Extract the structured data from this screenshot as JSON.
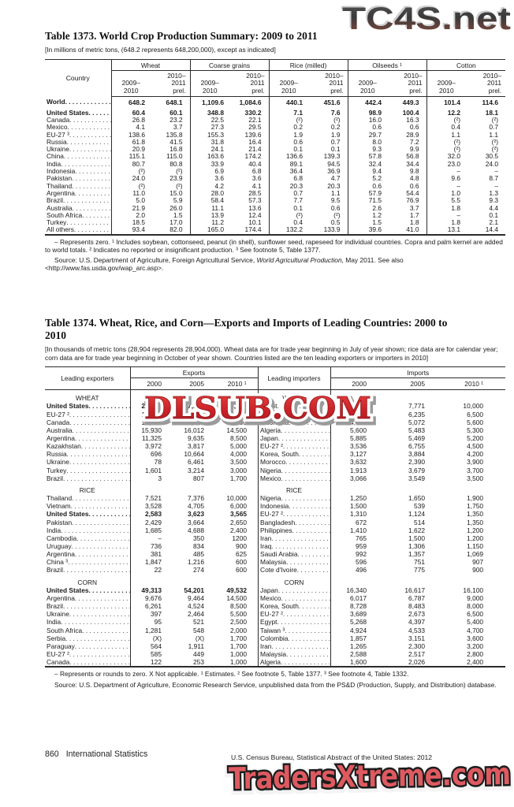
{
  "watermarks": {
    "top": "TC4S.net",
    "middle": "DLSUB.COM",
    "bottom": "TradersXtreme.com"
  },
  "footer": {
    "page_number": "860",
    "section": "International Statistics",
    "credit": "U.S. Census Bureau, Statistical Abstract of the United States: 2012"
  },
  "table1373": {
    "title": "Table 1373. World Crop Production Summary: 2009 to 2011",
    "note": "[In millions of metric tons, (648.2 represents 648,200,000), except as indicated]",
    "country_header": "Country",
    "groups": [
      "Wheat",
      "Coarse grains",
      "Rice (milled)",
      "Oilseeds ¹",
      "Cotton"
    ],
    "year_col1": "2009–\n2010",
    "year_col2": "2010–\n2011\nprel.",
    "rows": [
      {
        "label": "World",
        "bold": true,
        "values": [
          "648.2",
          "648.1",
          "1,109.6",
          "1,084.6",
          "440.1",
          "451.6",
          "442.4",
          "449.3",
          "101.4",
          "114.6"
        ]
      },
      {
        "label": "United States",
        "bold": true,
        "values": [
          "60.4",
          "60.1",
          "348.8",
          "330.2",
          "7.1",
          "7.6",
          "98.9",
          "100.4",
          "12.2",
          "18.1"
        ]
      },
      {
        "label": "Canada",
        "bold": false,
        "values": [
          "26.8",
          "23.2",
          "22.5",
          "22.1",
          "(²)",
          "(²)",
          "16.0",
          "16.3",
          "(²)",
          "(²)"
        ]
      },
      {
        "label": "Mexico",
        "bold": false,
        "values": [
          "4.1",
          "3.7",
          "27.3",
          "29.5",
          "0.2",
          "0.2",
          "0.6",
          "0.6",
          "0.4",
          "0.7"
        ]
      },
      {
        "label": "EU-27 ³",
        "bold": false,
        "values": [
          "138.6",
          "135.8",
          "155.3",
          "139.6",
          "1.9",
          "1.9",
          "29.7",
          "28.9",
          "1.1",
          "1.1"
        ]
      },
      {
        "label": "Russia",
        "bold": false,
        "values": [
          "61.8",
          "41.5",
          "31.8",
          "16.4",
          "0.6",
          "0.7",
          "8.0",
          "7.2",
          "(²)",
          "(²)"
        ]
      },
      {
        "label": "Ukraine",
        "bold": false,
        "values": [
          "20.9",
          "16.8",
          "24.1",
          "21.4",
          "0.1",
          "0.1",
          "9.3",
          "9.9",
          "(²)",
          "(²)"
        ]
      },
      {
        "label": "China",
        "bold": false,
        "values": [
          "115.1",
          "115.0",
          "163.6",
          "174.2",
          "136.6",
          "139.3",
          "57.8",
          "56.8",
          "32.0",
          "30.5"
        ]
      },
      {
        "label": "India",
        "bold": false,
        "values": [
          "80.7",
          "80.8",
          "33.9",
          "40.4",
          "89.1",
          "94.5",
          "32.4",
          "34.4",
          "23.0",
          "24.0"
        ]
      },
      {
        "label": "Indonesia",
        "bold": false,
        "values": [
          "(²)",
          "(²)",
          "6.9",
          "6.8",
          "36.4",
          "36.9",
          "9.4",
          "9.8",
          "–",
          "–"
        ]
      },
      {
        "label": "Pakistan",
        "bold": false,
        "values": [
          "24.0",
          "23.9",
          "3.6",
          "3.6",
          "6.8",
          "4.7",
          "5.2",
          "4.8",
          "9.6",
          "8.7"
        ]
      },
      {
        "label": "Thailand",
        "bold": false,
        "values": [
          "(²)",
          "(²)",
          "4.2",
          "4.1",
          "20.3",
          "20.3",
          "0.6",
          "0.6",
          "–",
          "–"
        ]
      },
      {
        "label": "Argentina",
        "bold": false,
        "values": [
          "11.0",
          "15.0",
          "28.0",
          "28.5",
          "0.7",
          "1.1",
          "57.9",
          "54.4",
          "1.0",
          "1.3"
        ]
      },
      {
        "label": "Brazil",
        "bold": false,
        "values": [
          "5.0",
          "5.9",
          "58.4",
          "57.3",
          "7.7",
          "9.5",
          "71.5",
          "76.9",
          "5.5",
          "9.3"
        ]
      },
      {
        "label": "Australia",
        "bold": false,
        "values": [
          "21.9",
          "26.0",
          "11.1",
          "13.6",
          "0.1",
          "0.6",
          "2.6",
          "3.7",
          "1.8",
          "4.4"
        ]
      },
      {
        "label": "South Africa",
        "bold": false,
        "values": [
          "2.0",
          "1.5",
          "13.9",
          "12.4",
          "(²)",
          "(²)",
          "1.2",
          "1.7",
          "–",
          "0.1"
        ]
      },
      {
        "label": "Turkey",
        "bold": false,
        "values": [
          "18.5",
          "17.0",
          "11.2",
          "10.1",
          "0.4",
          "0.5",
          "1.5",
          "1.8",
          "1.8",
          "2.1"
        ]
      },
      {
        "label": "All others",
        "bold": false,
        "values": [
          "93.4",
          "82.0",
          "165.0",
          "174.4",
          "132.2",
          "133.9",
          "39.6",
          "41.0",
          "13.1",
          "14.4"
        ]
      }
    ],
    "footnotes": "– Represents zero. ¹ Includes soybean, cottonseed, peanut (in shell), sunflower seed, rapeseed for individual countries. Copra and palm kernel are added to world totals. ² Indicates no reported or insignificant production. ³ See footnote 5, Table 1377.",
    "source_prefix": "Source: U.S. Department of Agriculture, Foreign Agricultural Service, ",
    "source_italic": "World Agricultural Production,",
    "source_suffix": " May 2011. See also <http://www.fas.usda.gov/wap_arc.asp>."
  },
  "table1374": {
    "title": "Table 1374. Wheat, Rice, and Corn—Exports and Imports of Leading Countries: 2000 to 2010",
    "note": "[In thousands of metric tons (28,904 represents 28,904,000). Wheat data are for trade year beginning in July of year shown; rice data are for calendar year; corn data are for trade year beginning in October of year shown. Countries listed are the ten leading exporters or importers in 2010]",
    "exporters_header": "Leading exporters",
    "importers_header": "Leading importers",
    "exports_header": "Exports",
    "imports_header": "Imports",
    "year_cols": [
      "2000",
      "2005",
      "2010 ¹"
    ],
    "sections": [
      {
        "name": "WHEAT",
        "exporters": [
          {
            "label": "United States",
            "bold": true,
            "values": [
              "28,904",
              "27,302",
              "35,000"
            ]
          },
          {
            "label": "EU-27 ²",
            "bold": false,
            "values": [
              "15,500",
              "15,700",
              "22,500"
            ]
          },
          {
            "label": "Canada",
            "bold": false,
            "values": [
              "17,316",
              "16,020",
              "17,000"
            ]
          },
          {
            "label": "Australia",
            "bold": false,
            "values": [
              "15,930",
              "16,012",
              "14,500"
            ]
          },
          {
            "label": "Argentina",
            "bold": false,
            "values": [
              "11,325",
              "9,635",
              "8,500"
            ]
          },
          {
            "label": "Kazakhstan",
            "bold": false,
            "values": [
              "3,972",
              "3,817",
              "5,000"
            ]
          },
          {
            "label": "Russia",
            "bold": false,
            "values": [
              "696",
              "10,664",
              "4,000"
            ]
          },
          {
            "label": "Ukraine",
            "bold": false,
            "values": [
              "78",
              "6,461",
              "3,500"
            ]
          },
          {
            "label": "Turkey",
            "bold": false,
            "values": [
              "1,601",
              "3,214",
              "3,000"
            ]
          },
          {
            "label": "Brazil",
            "bold": false,
            "values": [
              "3",
              "807",
              "1,700"
            ]
          }
        ],
        "importers": [
          {
            "label": "Egypt",
            "bold": false,
            "values": [
              "6,050",
              "7,771",
              "10,000"
            ]
          },
          {
            "label": "Brazil",
            "bold": false,
            "values": [
              "7,077",
              "6,235",
              "6,500"
            ]
          },
          {
            "label": "Indonesia",
            "bold": false,
            "values": [
              "4,069",
              "5,072",
              "5,600"
            ]
          },
          {
            "label": "Algeria",
            "bold": false,
            "values": [
              "5,600",
              "5,483",
              "5,300"
            ]
          },
          {
            "label": "Japan",
            "bold": false,
            "values": [
              "5,885",
              "5,469",
              "5,200"
            ]
          },
          {
            "label": "EU-27 ²",
            "bold": false,
            "values": [
              "3,536",
              "6,755",
              "4,500"
            ]
          },
          {
            "label": "Korea, South",
            "bold": false,
            "values": [
              "3,127",
              "3,884",
              "4,200"
            ]
          },
          {
            "label": "Morocco",
            "bold": false,
            "values": [
              "3,632",
              "2,390",
              "3,900"
            ]
          },
          {
            "label": "Nigeria",
            "bold": false,
            "values": [
              "1,913",
              "3,679",
              "3,700"
            ]
          },
          {
            "label": "Mexico",
            "bold": false,
            "values": [
              "3,066",
              "3,549",
              "3,500"
            ]
          }
        ]
      },
      {
        "name": "RICE",
        "exporters": [
          {
            "label": "Thailand",
            "bold": false,
            "values": [
              "7,521",
              "7,376",
              "10,000"
            ]
          },
          {
            "label": "Vietnam",
            "bold": false,
            "values": [
              "3,528",
              "4,705",
              "6,000"
            ]
          },
          {
            "label": "United States",
            "bold": true,
            "values": [
              "2,583",
              "3,623",
              "3,565"
            ]
          },
          {
            "label": "Pakistan",
            "bold": false,
            "values": [
              "2,429",
              "3,664",
              "2,650"
            ]
          },
          {
            "label": "India",
            "bold": false,
            "values": [
              "1,685",
              "4,688",
              "2,400"
            ]
          },
          {
            "label": "Cambodia",
            "bold": false,
            "values": [
              "–",
              "350",
              "1200"
            ]
          },
          {
            "label": "Uruguay",
            "bold": false,
            "values": [
              "736",
              "834",
              "900"
            ]
          },
          {
            "label": "Argentina",
            "bold": false,
            "values": [
              "381",
              "485",
              "625"
            ]
          },
          {
            "label": "China ³",
            "bold": false,
            "values": [
              "1,847",
              "1,216",
              "600"
            ]
          },
          {
            "label": "Brazil",
            "bold": false,
            "values": [
              "22",
              "274",
              "600"
            ]
          }
        ],
        "importers": [
          {
            "label": "Nigeria",
            "bold": false,
            "values": [
              "1,250",
              "1,650",
              "1,900"
            ]
          },
          {
            "label": "Indonesia",
            "bold": false,
            "values": [
              "1,500",
              "539",
              "1,750"
            ]
          },
          {
            "label": "EU-27 ²",
            "bold": false,
            "values": [
              "1,310",
              "1,124",
              "1,350"
            ]
          },
          {
            "label": "Bangladesh",
            "bold": false,
            "values": [
              "672",
              "514",
              "1,350"
            ]
          },
          {
            "label": "Philippines",
            "bold": false,
            "values": [
              "1,410",
              "1,622",
              "1,200"
            ]
          },
          {
            "label": "Iran",
            "bold": false,
            "values": [
              "765",
              "1,500",
              "1,200"
            ]
          },
          {
            "label": "Iraq",
            "bold": false,
            "values": [
              "959",
              "1,306",
              "1,150"
            ]
          },
          {
            "label": "Saudi Arabia",
            "bold": false,
            "values": [
              "992",
              "1,357",
              "1,069"
            ]
          },
          {
            "label": "Malaysia",
            "bold": false,
            "values": [
              "596",
              "751",
              "907"
            ]
          },
          {
            "label": "Cote d'Ivoire",
            "bold": false,
            "values": [
              "496",
              "775",
              "900"
            ]
          }
        ]
      },
      {
        "name": "CORN",
        "exporters": [
          {
            "label": "United States",
            "bold": true,
            "values": [
              "49,313",
              "54,201",
              "49,532"
            ]
          },
          {
            "label": "Argentina",
            "bold": false,
            "values": [
              "9,676",
              "9,464",
              "14,500"
            ]
          },
          {
            "label": "Brazil",
            "bold": false,
            "values": [
              "6,261",
              "4,524",
              "8,500"
            ]
          },
          {
            "label": "Ukraine",
            "bold": false,
            "values": [
              "397",
              "2,464",
              "5,500"
            ]
          },
          {
            "label": "India",
            "bold": false,
            "values": [
              "95",
              "521",
              "2,500"
            ]
          },
          {
            "label": "South Africa",
            "bold": false,
            "values": [
              "1,281",
              "548",
              "2,000"
            ]
          },
          {
            "label": "Serbia",
            "bold": false,
            "values": [
              "(X)",
              "(X)",
              "1,700"
            ]
          },
          {
            "label": "Paraguay",
            "bold": false,
            "values": [
              "564",
              "1,911",
              "1,700"
            ]
          },
          {
            "label": "EU-27 ²",
            "bold": false,
            "values": [
              "585",
              "449",
              "1,000"
            ]
          },
          {
            "label": "Canada",
            "bold": false,
            "values": [
              "122",
              "253",
              "1,000"
            ]
          }
        ],
        "importers": [
          {
            "label": "Japan",
            "bold": false,
            "values": [
              "16,340",
              "16,617",
              "16,100"
            ]
          },
          {
            "label": "Mexico",
            "bold": false,
            "values": [
              "6,017",
              "6,787",
              "9,000"
            ]
          },
          {
            "label": "Korea, South",
            "bold": false,
            "values": [
              "8,728",
              "8,483",
              "8,000"
            ]
          },
          {
            "label": "EU-27 ²",
            "bold": false,
            "values": [
              "3,689",
              "2,673",
              "6,500"
            ]
          },
          {
            "label": "Egypt",
            "bold": false,
            "values": [
              "5,268",
              "4,397",
              "5,400"
            ]
          },
          {
            "label": "Taiwan ³",
            "bold": false,
            "values": [
              "4,924",
              "4,533",
              "4,700"
            ]
          },
          {
            "label": "Colombia",
            "bold": false,
            "values": [
              "1,857",
              "3,151",
              "3,600"
            ]
          },
          {
            "label": "Iran",
            "bold": false,
            "values": [
              "1,265",
              "2,300",
              "3,200"
            ]
          },
          {
            "label": "Malaysia",
            "bold": false,
            "values": [
              "2,588",
              "2,517",
              "2,800"
            ]
          },
          {
            "label": "Algeria",
            "bold": false,
            "values": [
              "1,600",
              "2,026",
              "2,400"
            ]
          }
        ]
      }
    ],
    "footnotes": "– Represents or rounds to zero. X Not applicable. ¹ Estimates. ² See footnote 5, Table 1377. ³ See footnote 4, Table 1332.",
    "source": "Source: U.S. Department of Agriculture, Economic Research Service, unpublished data from the PS&D (Production, Supply, and Distribution) database."
  }
}
